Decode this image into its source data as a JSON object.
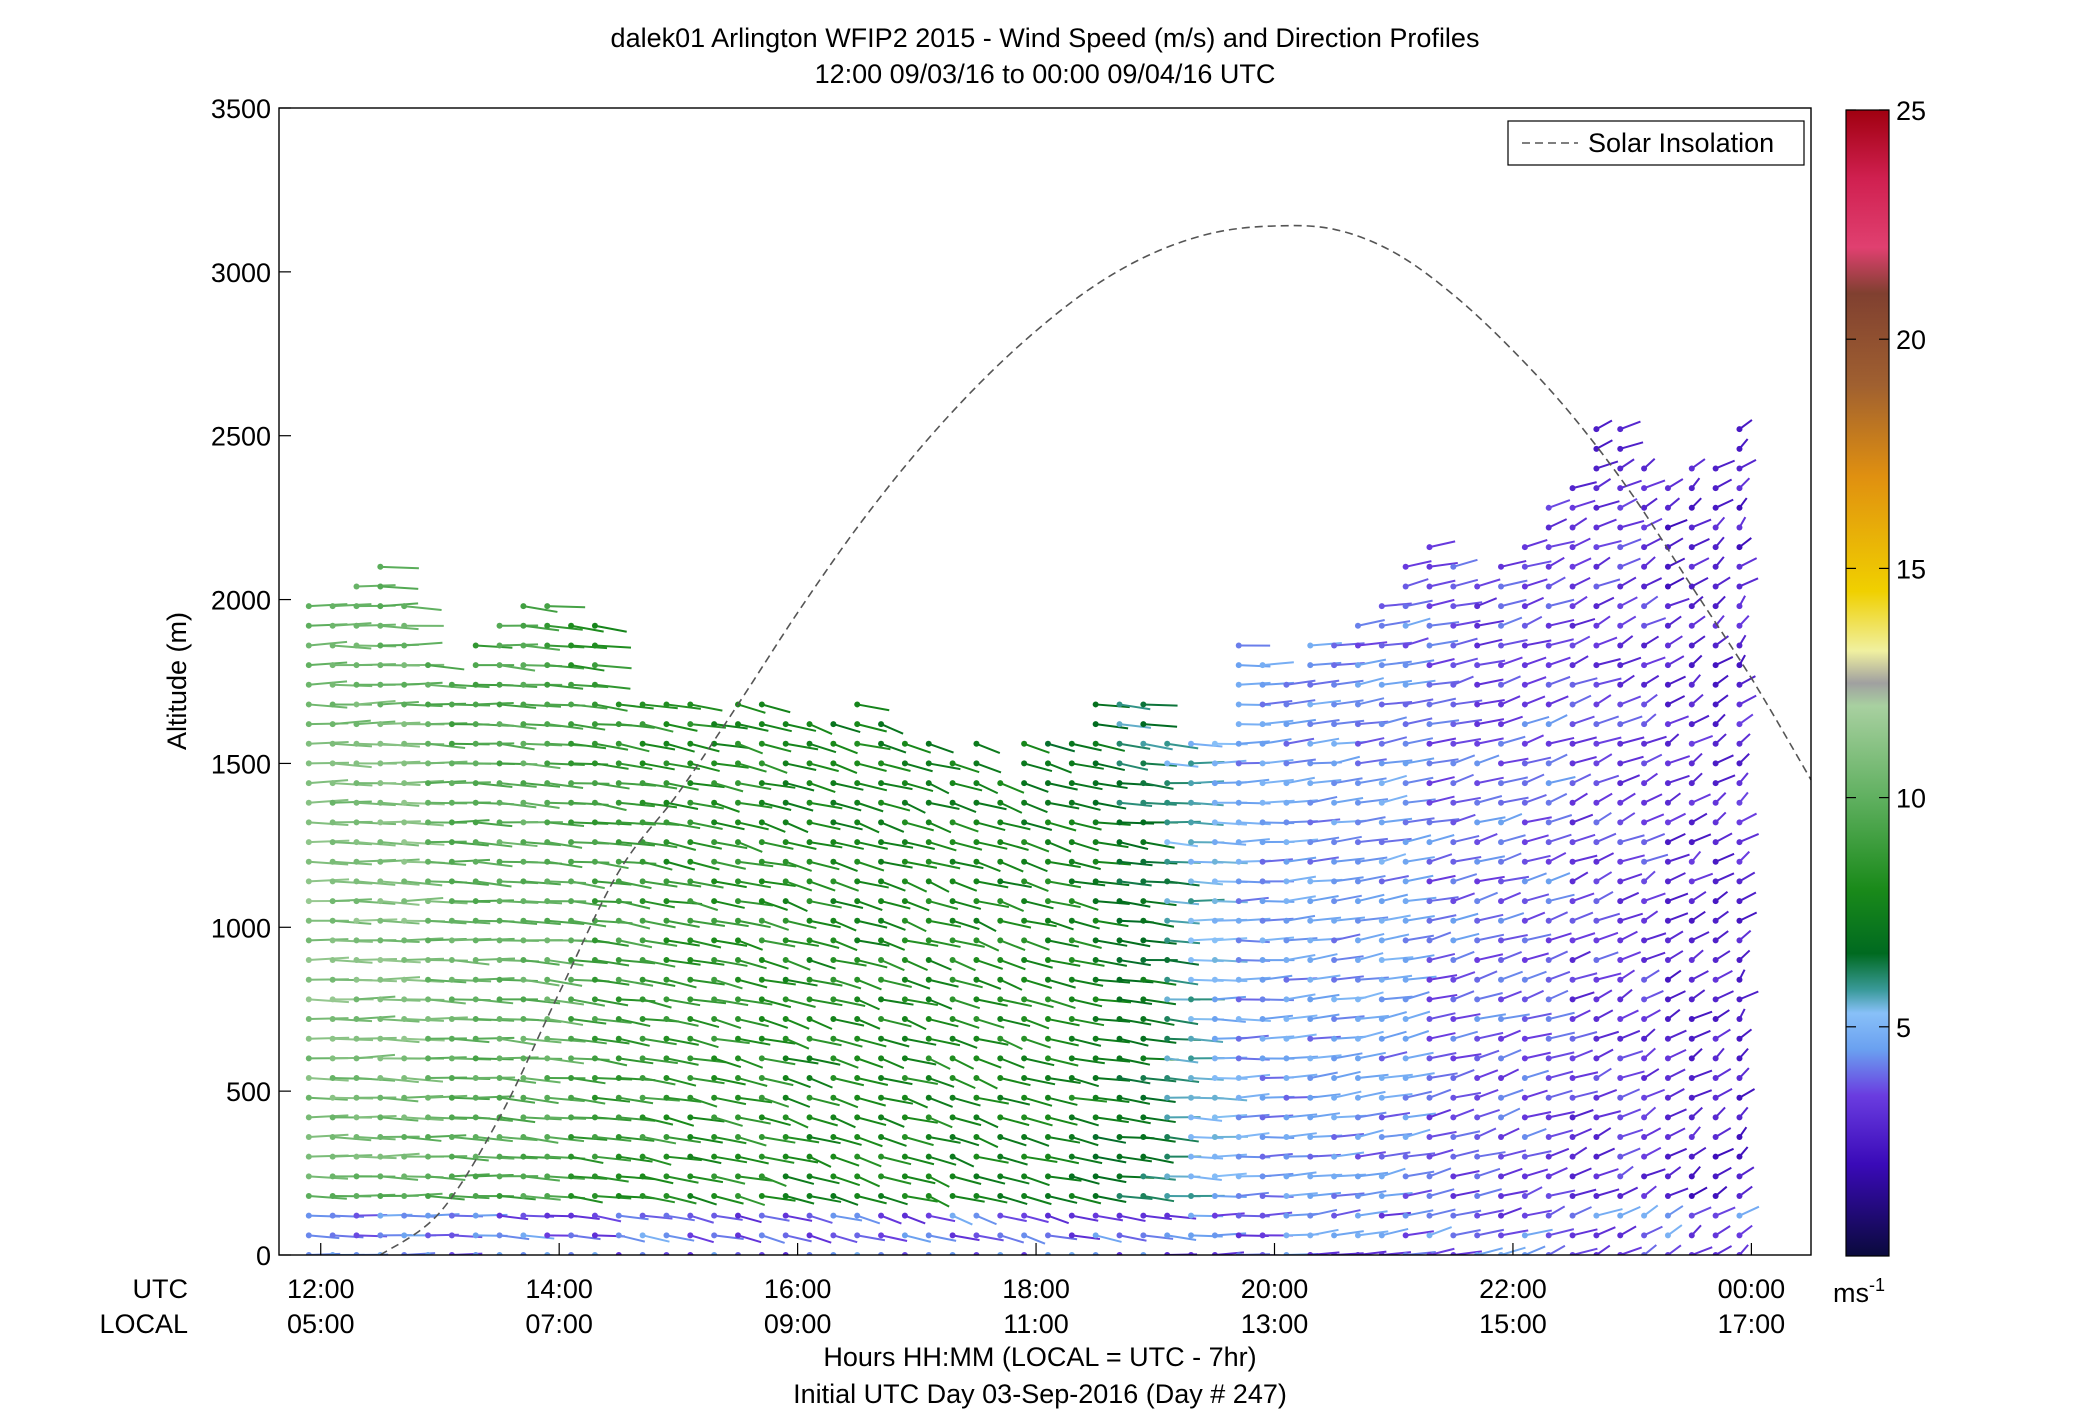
{
  "chart_data": {
    "type": "scatter",
    "title": "dalek01 Arlington WFIP2 2015 - Wind Speed (m/s) and Direction Profiles",
    "subtitle": "12:00 09/03/16 to 00:00 09/04/16  UTC",
    "ylabel": "Altitude (m)",
    "xlabel": "Hours HH:MM  (LOCAL = UTC - 7hr)",
    "xlabel2": "Initial UTC Day 03-Sep-2016 (Day # 247)",
    "xlim": [
      11.65,
      24.5
    ],
    "ylim": [
      0,
      3500
    ],
    "y_ticks": [
      "0",
      "500",
      "1000",
      "1500",
      "2000",
      "2500",
      "3000",
      "3500"
    ],
    "x_ticks_utc": [
      "12:00",
      "14:00",
      "16:00",
      "18:00",
      "20:00",
      "22:00",
      "00:00"
    ],
    "x_ticks_local": [
      "05:00",
      "07:00",
      "09:00",
      "11:00",
      "13:00",
      "15:00",
      "17:00"
    ],
    "x_row_labels": [
      "UTC",
      "LOCAL"
    ],
    "grid": false,
    "legend": {
      "position": "top-right",
      "entries": [
        "Solar Insolation"
      ]
    },
    "colorbar": {
      "range": [
        0,
        25
      ],
      "ticks": [
        "5",
        "10",
        "15",
        "20",
        "25"
      ],
      "unit_base": "ms",
      "unit_exp": "-1",
      "stops": [
        {
          "v": 0,
          "c": "#0a0a3c"
        },
        {
          "v": 2,
          "c": "#3a0ab8"
        },
        {
          "v": 3.5,
          "c": "#6a3ce0"
        },
        {
          "v": 4.5,
          "c": "#6aa0f0"
        },
        {
          "v": 5.3,
          "c": "#88c0f8"
        },
        {
          "v": 5.8,
          "c": "#3a9a9a"
        },
        {
          "v": 6.6,
          "c": "#006a20"
        },
        {
          "v": 8,
          "c": "#1a8a1a"
        },
        {
          "v": 10,
          "c": "#60b060"
        },
        {
          "v": 12,
          "c": "#a8d0a0"
        },
        {
          "v": 12.5,
          "c": "#a0a0a0"
        },
        {
          "v": 13.2,
          "c": "#f0f0a0"
        },
        {
          "v": 14.5,
          "c": "#f0d000"
        },
        {
          "v": 17,
          "c": "#e09010"
        },
        {
          "v": 19,
          "c": "#a06030"
        },
        {
          "v": 21,
          "c": "#804030"
        },
        {
          "v": 22,
          "c": "#e04070"
        },
        {
          "v": 23.5,
          "c": "#d02050"
        },
        {
          "v": 25,
          "c": "#a00010"
        }
      ]
    },
    "solar_insolation": {
      "x": [
        12.5,
        13,
        13.5,
        14,
        14.5,
        15,
        15.5,
        16,
        16.5,
        17,
        17.5,
        18,
        18.5,
        19,
        19.5,
        20,
        20.5,
        21,
        21.5,
        22,
        22.5,
        23,
        23.5,
        24,
        24.5
      ],
      "y": [
        0,
        130,
        420,
        800,
        1170,
        1410,
        1680,
        1960,
        2220,
        2450,
        2650,
        2820,
        2960,
        3060,
        3120,
        3140,
        3130,
        3060,
        2930,
        2760,
        2560,
        2320,
        2040,
        1760,
        1450
      ]
    },
    "wind_profiles": {
      "times": [
        11.9,
        12.1,
        12.3,
        12.5,
        12.7,
        12.9,
        13.1,
        13.3,
        13.5,
        13.7,
        13.9,
        14.1,
        14.3,
        14.5,
        14.7,
        14.9,
        15.1,
        15.3,
        15.5,
        15.7,
        15.9,
        16.1,
        16.3,
        16.5,
        16.7,
        16.9,
        17.1,
        17.3,
        17.5,
        17.7,
        17.9,
        18.1,
        18.3,
        18.5,
        18.7,
        18.9,
        19.1,
        19.3,
        19.5,
        19.7,
        19.9,
        20.1,
        20.3,
        20.5,
        20.7,
        20.9,
        21.1,
        21.3,
        21.5,
        21.7,
        21.9,
        22.1,
        22.3,
        22.5,
        22.7,
        22.9,
        23.1,
        23.3,
        23.5,
        23.7,
        23.9
      ],
      "altitudes": [
        0,
        60,
        120,
        180,
        240,
        300,
        360,
        420,
        480,
        540,
        600,
        660,
        720,
        780,
        840,
        900,
        960,
        1020,
        1080,
        1140,
        1200,
        1260,
        1320,
        1380,
        1440,
        1500,
        1560,
        1620,
        1680,
        1740,
        1800,
        1860,
        1920,
        1980,
        2040,
        2100,
        2160,
        2220,
        2280,
        2340,
        2400,
        2460,
        2520
      ],
      "max_alt": [
        2000,
        2000,
        2080,
        2120,
        2000,
        1840,
        1780,
        1860,
        1960,
        2000,
        1980,
        1940,
        1960,
        1700,
        1700,
        1700,
        1700,
        1650,
        1700,
        1700,
        1620,
        1620,
        1620,
        1700,
        1620,
        1560,
        1580,
        1500,
        1580,
        1480,
        1580,
        1580,
        1560,
        1700,
        1680,
        1680,
        1560,
        1560,
        1560,
        1880,
        1800,
        1760,
        1880,
        1880,
        1960,
        2000,
        2100,
        2200,
        2120,
        2060,
        2120,
        2160,
        2280,
        2380,
        2520,
        2600,
        2440,
        2380,
        2420,
        2400,
        2550
      ],
      "speed_lo": [
        9,
        9,
        9,
        8.5,
        8.5,
        8.5,
        8,
        8,
        8,
        8,
        7.5,
        7.5,
        7.5,
        7.5,
        7.5,
        7.5,
        7.5,
        7.5,
        7.5,
        7,
        7,
        7,
        7,
        7,
        7,
        7,
        7,
        7,
        7,
        7,
        6.5,
        6,
        5.5,
        5.5,
        5,
        5,
        5,
        5,
        4.5,
        4.5,
        4,
        4,
        4,
        4,
        3.5,
        3.5,
        3.5,
        3,
        3,
        3,
        3,
        3,
        2.5,
        2.5,
        2.5,
        2.5,
        2,
        2,
        2,
        2,
        2
      ],
      "speed_hi": [
        11,
        11,
        11,
        11,
        11,
        10.5,
        10,
        10,
        10,
        10,
        10,
        9.5,
        9,
        9,
        9,
        8.5,
        8.5,
        8.5,
        8.5,
        8.5,
        8,
        8,
        8,
        8,
        8,
        8,
        8,
        8,
        8,
        8,
        8,
        8,
        8,
        7.5,
        7,
        7,
        6,
        5.5,
        5,
        4.5,
        4.5,
        4.5,
        4.5,
        4.5,
        4.5,
        4.5,
        4.5,
        4,
        4,
        4,
        4,
        4,
        4,
        3.5,
        3.5,
        3.5,
        3.5,
        3,
        3,
        3,
        3
      ],
      "direction_deg": [
        270,
        270,
        270,
        272,
        272,
        275,
        275,
        278,
        280,
        282,
        285,
        288,
        290,
        292,
        295,
        298,
        300,
        302,
        305,
        306,
        308,
        310,
        310,
        310,
        310,
        310,
        312,
        312,
        312,
        310,
        308,
        305,
        300,
        295,
        290,
        285,
        280,
        275,
        270,
        265,
        260,
        255,
        250,
        248,
        245,
        242,
        240,
        238,
        235,
        232,
        230,
        228,
        225,
        222,
        220,
        218,
        215,
        212,
        210,
        208,
        205
      ]
    }
  }
}
